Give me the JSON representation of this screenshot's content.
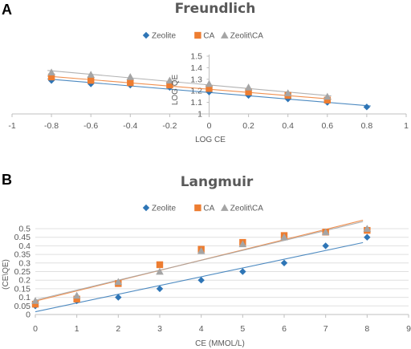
{
  "colors": {
    "Zeolite": "#2e75b6",
    "CA": "#ed7d31",
    "Zeolit\\CA": "#a5a5a5",
    "axis": "#bfbfbf",
    "text": "#595959"
  },
  "chart_data": [
    {
      "panel": "A",
      "type": "scatter",
      "title": "Freundlich",
      "xlabel": "LOG CE",
      "ylabel": "LOG QE",
      "xlim": [
        -1,
        1
      ],
      "ylim": [
        1,
        1.5
      ],
      "x_ticks": [
        "-1",
        "-0.8",
        "-0.6",
        "-0.4",
        "-0.2",
        "0",
        "0.2",
        "0.4",
        "0.6",
        "0.8",
        "1"
      ],
      "y_ticks": [
        "1",
        "1.1",
        "1.2",
        "1.3",
        "1.4",
        "1.5"
      ],
      "legend": {
        "position": "top",
        "entries": [
          "Zeolite",
          "CA",
          "Zeolit\\CA"
        ]
      },
      "series": [
        {
          "name": "Zeolite",
          "marker": "diamond",
          "trendline": true,
          "x": [
            -0.8,
            -0.6,
            -0.4,
            -0.2,
            0,
            0.2,
            0.4,
            0.6,
            0.8
          ],
          "y": [
            1.29,
            1.26,
            1.25,
            1.23,
            1.19,
            1.16,
            1.13,
            1.1,
            1.06
          ]
        },
        {
          "name": "CA",
          "marker": "square",
          "trendline": true,
          "x": [
            -0.8,
            -0.6,
            -0.4,
            -0.2,
            0,
            0.2,
            0.4,
            0.6
          ],
          "y": [
            1.32,
            1.29,
            1.27,
            1.25,
            1.22,
            1.19,
            1.16,
            1.12
          ]
        },
        {
          "name": "Zeolit\\CA",
          "marker": "triangle",
          "trendline": true,
          "x": [
            -0.8,
            -0.6,
            -0.4,
            -0.2,
            0,
            0.2,
            0.4,
            0.6
          ],
          "y": [
            1.36,
            1.34,
            1.32,
            1.29,
            1.26,
            1.23,
            1.18,
            1.15
          ]
        }
      ]
    },
    {
      "panel": "B",
      "type": "scatter",
      "title": "Langmuir",
      "xlabel": "CE (MMOL/L)",
      "ylabel": "(CE\\QE)",
      "xlim": [
        0,
        9
      ],
      "ylim": [
        0,
        0.5
      ],
      "x_ticks": [
        "0",
        "1",
        "2",
        "3",
        "4",
        "5",
        "6",
        "7",
        "8",
        "9"
      ],
      "y_ticks": [
        "0",
        "0.05",
        "0.1",
        "0.15",
        "0.2",
        "0.25",
        "0.3",
        "0.35",
        "0.4",
        "0.45",
        "0.5"
      ],
      "legend": {
        "position": "top",
        "entries": [
          "Zeolite",
          "CA",
          "Zeolit\\CA"
        ]
      },
      "series": [
        {
          "name": "Zeolite",
          "marker": "diamond",
          "trendline": true,
          "x": [
            0,
            1,
            2,
            3,
            4,
            5,
            6,
            7,
            8
          ],
          "y": [
            0.05,
            0.08,
            0.1,
            0.15,
            0.2,
            0.25,
            0.3,
            0.4,
            0.45
          ]
        },
        {
          "name": "CA",
          "marker": "square",
          "trendline": true,
          "x": [
            0,
            1,
            2,
            3,
            4,
            5,
            6,
            7,
            8
          ],
          "y": [
            0.06,
            0.09,
            0.18,
            0.29,
            0.38,
            0.42,
            0.46,
            0.48,
            0.49
          ]
        },
        {
          "name": "Zeolit\\CA",
          "marker": "triangle",
          "trendline": true,
          "x": [
            0,
            1,
            2,
            3,
            4,
            5,
            6,
            7,
            8
          ],
          "y": [
            0.08,
            0.11,
            0.19,
            0.25,
            0.37,
            0.41,
            0.45,
            0.48,
            0.5
          ]
        }
      ]
    }
  ]
}
